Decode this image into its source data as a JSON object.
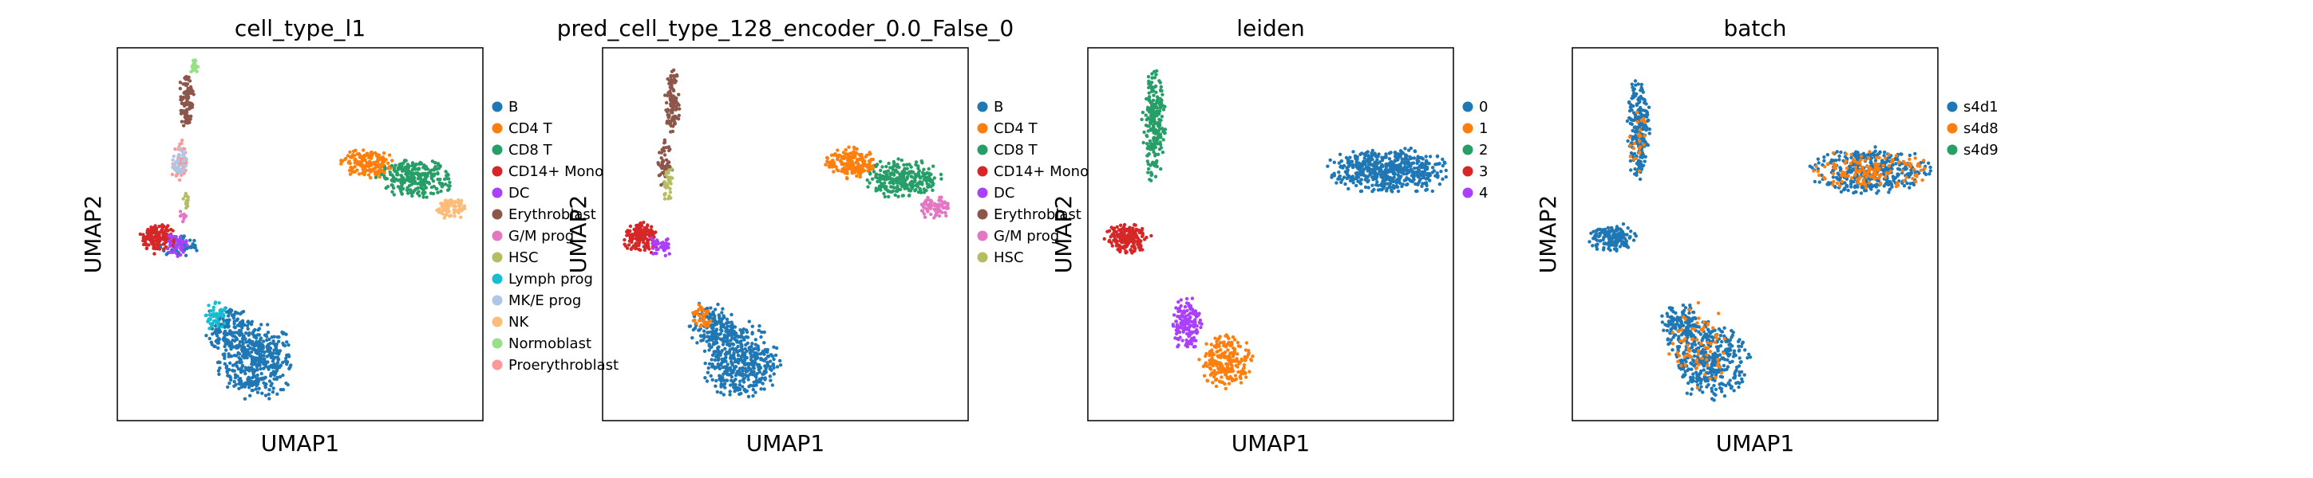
{
  "chart_data": [
    {
      "type": "scatter",
      "title": "cell_type_l1",
      "xlabel": "UMAP1",
      "ylabel": "UMAP2",
      "grid": false,
      "ticks": false,
      "legend_position": "right",
      "legend": [
        {
          "label": "B",
          "color": "#1f77b4"
        },
        {
          "label": "CD4 T",
          "color": "#ff7f0e"
        },
        {
          "label": "CD8 T",
          "color": "#279e68"
        },
        {
          "label": "CD14+ Mono",
          "color": "#d62728"
        },
        {
          "label": "DC",
          "color": "#aa40fc"
        },
        {
          "label": "Erythroblast",
          "color": "#8c564b"
        },
        {
          "label": "G/M prog",
          "color": "#e377c2"
        },
        {
          "label": "HSC",
          "color": "#b5bd61"
        },
        {
          "label": "Lymph prog",
          "color": "#17becf"
        },
        {
          "label": "MK/E prog",
          "color": "#aec7e8"
        },
        {
          "label": "NK",
          "color": "#ffbb78"
        },
        {
          "label": "Normoblast",
          "color": "#98df8a"
        },
        {
          "label": "Proerythroblast",
          "color": "#ff9896"
        }
      ],
      "clusters": [
        {
          "series": "B",
          "x": 0.38,
          "y": 0.16,
          "rx": 0.1,
          "ry": 0.1,
          "n": 420
        },
        {
          "series": "B",
          "x": 0.3,
          "y": 0.25,
          "rx": 0.06,
          "ry": 0.06,
          "n": 160
        },
        {
          "series": "B",
          "x": 0.17,
          "y": 0.47,
          "rx": 0.05,
          "ry": 0.03,
          "n": 80
        },
        {
          "series": "Lymph prog",
          "x": 0.27,
          "y": 0.28,
          "rx": 0.03,
          "ry": 0.04,
          "n": 50
        },
        {
          "series": "CD4 T",
          "x": 0.68,
          "y": 0.69,
          "rx": 0.07,
          "ry": 0.04,
          "n": 160
        },
        {
          "series": "CD8 T",
          "x": 0.82,
          "y": 0.65,
          "rx": 0.1,
          "ry": 0.05,
          "n": 260
        },
        {
          "series": "NK",
          "x": 0.91,
          "y": 0.57,
          "rx": 0.04,
          "ry": 0.03,
          "n": 80
        },
        {
          "series": "CD14+ Mono",
          "x": 0.11,
          "y": 0.49,
          "rx": 0.05,
          "ry": 0.04,
          "n": 150
        },
        {
          "series": "DC",
          "x": 0.16,
          "y": 0.47,
          "rx": 0.03,
          "ry": 0.03,
          "n": 40
        },
        {
          "series": "Erythroblast",
          "x": 0.19,
          "y": 0.86,
          "rx": 0.02,
          "ry": 0.08,
          "n": 100
        },
        {
          "series": "Proerythroblast",
          "x": 0.17,
          "y": 0.69,
          "rx": 0.02,
          "ry": 0.06,
          "n": 50
        },
        {
          "series": "MK/E prog",
          "x": 0.17,
          "y": 0.69,
          "rx": 0.02,
          "ry": 0.04,
          "n": 30
        },
        {
          "series": "Normoblast",
          "x": 0.21,
          "y": 0.95,
          "rx": 0.01,
          "ry": 0.02,
          "n": 20
        },
        {
          "series": "HSC",
          "x": 0.19,
          "y": 0.59,
          "rx": 0.01,
          "ry": 0.03,
          "n": 15
        },
        {
          "series": "G/M prog",
          "x": 0.18,
          "y": 0.55,
          "rx": 0.01,
          "ry": 0.02,
          "n": 12
        }
      ]
    },
    {
      "type": "scatter",
      "title": "pred_cell_type_128_encoder_0.0_False_0",
      "xlabel": "UMAP1",
      "ylabel": "UMAP2",
      "grid": false,
      "ticks": false,
      "legend_position": "right",
      "legend": [
        {
          "label": "B",
          "color": "#1f77b4"
        },
        {
          "label": "CD4 T",
          "color": "#ff7f0e"
        },
        {
          "label": "CD8 T",
          "color": "#279e68"
        },
        {
          "label": "CD14+ Mono",
          "color": "#d62728"
        },
        {
          "label": "DC",
          "color": "#aa40fc"
        },
        {
          "label": "Erythroblast",
          "color": "#8c564b"
        },
        {
          "label": "G/M prog",
          "color": "#e377c2"
        },
        {
          "label": "HSC",
          "color": "#b5bd61"
        }
      ],
      "clusters": [
        {
          "series": "B",
          "x": 0.38,
          "y": 0.16,
          "rx": 0.1,
          "ry": 0.1,
          "n": 420
        },
        {
          "series": "B",
          "x": 0.3,
          "y": 0.25,
          "rx": 0.06,
          "ry": 0.06,
          "n": 160
        },
        {
          "series": "CD4 T",
          "x": 0.27,
          "y": 0.28,
          "rx": 0.03,
          "ry": 0.04,
          "n": 40
        },
        {
          "series": "CD4 T",
          "x": 0.68,
          "y": 0.69,
          "rx": 0.07,
          "ry": 0.04,
          "n": 180
        },
        {
          "series": "CD8 T",
          "x": 0.82,
          "y": 0.65,
          "rx": 0.1,
          "ry": 0.05,
          "n": 260
        },
        {
          "series": "G/M prog",
          "x": 0.91,
          "y": 0.57,
          "rx": 0.04,
          "ry": 0.03,
          "n": 80
        },
        {
          "series": "CD14+ Mono",
          "x": 0.11,
          "y": 0.49,
          "rx": 0.05,
          "ry": 0.04,
          "n": 150
        },
        {
          "series": "DC",
          "x": 0.16,
          "y": 0.47,
          "rx": 0.03,
          "ry": 0.03,
          "n": 40
        },
        {
          "series": "Erythroblast",
          "x": 0.19,
          "y": 0.86,
          "rx": 0.02,
          "ry": 0.08,
          "n": 100
        },
        {
          "series": "Erythroblast",
          "x": 0.17,
          "y": 0.69,
          "rx": 0.02,
          "ry": 0.06,
          "n": 50
        },
        {
          "series": "HSC",
          "x": 0.18,
          "y": 0.63,
          "rx": 0.015,
          "ry": 0.05,
          "n": 30
        }
      ]
    },
    {
      "type": "scatter",
      "title": "leiden",
      "xlabel": "UMAP1",
      "ylabel": "UMAP2",
      "grid": false,
      "ticks": false,
      "legend_position": "right",
      "legend": [
        {
          "label": "0",
          "color": "#1f77b4"
        },
        {
          "label": "1",
          "color": "#ff7f0e"
        },
        {
          "label": "2",
          "color": "#279e68"
        },
        {
          "label": "3",
          "color": "#d62728"
        },
        {
          "label": "4",
          "color": "#aa40fc"
        }
      ],
      "clusters": [
        {
          "series": "0",
          "x": 0.82,
          "y": 0.67,
          "rx": 0.16,
          "ry": 0.06,
          "n": 520
        },
        {
          "series": "1",
          "x": 0.38,
          "y": 0.16,
          "rx": 0.07,
          "ry": 0.07,
          "n": 220
        },
        {
          "series": "4",
          "x": 0.27,
          "y": 0.26,
          "rx": 0.04,
          "ry": 0.07,
          "n": 150
        },
        {
          "series": "2",
          "x": 0.18,
          "y": 0.79,
          "rx": 0.03,
          "ry": 0.14,
          "n": 220
        },
        {
          "series": "3",
          "x": 0.11,
          "y": 0.49,
          "rx": 0.06,
          "ry": 0.04,
          "n": 170
        }
      ]
    },
    {
      "type": "scatter",
      "title": "batch",
      "xlabel": "UMAP1",
      "ylabel": "UMAP2",
      "grid": false,
      "ticks": false,
      "legend_position": "right",
      "legend": [
        {
          "label": "s4d1",
          "color": "#1f77b4"
        },
        {
          "label": "s4d8",
          "color": "#ff7f0e"
        },
        {
          "label": "s4d9",
          "color": "#279e68"
        }
      ],
      "clusters": [
        {
          "series": "s4d1",
          "x": 0.38,
          "y": 0.16,
          "rx": 0.1,
          "ry": 0.1,
          "n": 360
        },
        {
          "series": "s4d1",
          "x": 0.3,
          "y": 0.25,
          "rx": 0.06,
          "ry": 0.06,
          "n": 140
        },
        {
          "series": "s4d1",
          "x": 0.82,
          "y": 0.67,
          "rx": 0.16,
          "ry": 0.06,
          "n": 380
        },
        {
          "series": "s4d1",
          "x": 0.18,
          "y": 0.79,
          "rx": 0.03,
          "ry": 0.14,
          "n": 200
        },
        {
          "series": "s4d1",
          "x": 0.11,
          "y": 0.49,
          "rx": 0.06,
          "ry": 0.04,
          "n": 140
        },
        {
          "series": "s4d8",
          "x": 0.82,
          "y": 0.67,
          "rx": 0.15,
          "ry": 0.05,
          "n": 150
        },
        {
          "series": "s4d8",
          "x": 0.34,
          "y": 0.2,
          "rx": 0.09,
          "ry": 0.11,
          "n": 70
        },
        {
          "series": "s4d8",
          "x": 0.18,
          "y": 0.75,
          "rx": 0.025,
          "ry": 0.1,
          "n": 25
        }
      ]
    }
  ]
}
